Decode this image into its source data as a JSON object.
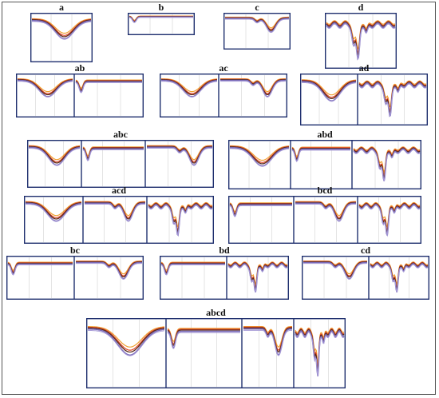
{
  "colors": {
    "border": "#1f2f6e",
    "grid": "#c8c8c8",
    "curve_red": "#e0472a",
    "curve_orange": "#f0a030",
    "curve_dark": "#5a2a1a",
    "curve_purple": "#7a6ab8",
    "curve_lavender": "#a89cd8"
  },
  "panels": [
    {
      "label": "a",
      "segments": [
        "a"
      ]
    },
    {
      "label": "b",
      "segments": [
        "b"
      ]
    },
    {
      "label": "c",
      "segments": [
        "c"
      ]
    },
    {
      "label": "d",
      "segments": [
        "d"
      ]
    },
    {
      "label": "ab",
      "segments": [
        "a",
        "b"
      ]
    },
    {
      "label": "ac",
      "segments": [
        "a",
        "c"
      ]
    },
    {
      "label": "ad",
      "segments": [
        "a",
        "d"
      ]
    },
    {
      "label": "abc",
      "segments": [
        "a",
        "b",
        "c"
      ]
    },
    {
      "label": "abd",
      "segments": [
        "a",
        "b",
        "d"
      ]
    },
    {
      "label": "acd",
      "segments": [
        "a",
        "c",
        "d"
      ]
    },
    {
      "label": "bcd",
      "segments": [
        "b",
        "c",
        "d"
      ]
    },
    {
      "label": "bc",
      "segments": [
        "b",
        "c"
      ]
    },
    {
      "label": "bd",
      "segments": [
        "b",
        "d"
      ]
    },
    {
      "label": "cd",
      "segments": [
        "c",
        "d"
      ]
    },
    {
      "label": "abcd",
      "segments": [
        "a",
        "b",
        "c",
        "d"
      ]
    }
  ]
}
